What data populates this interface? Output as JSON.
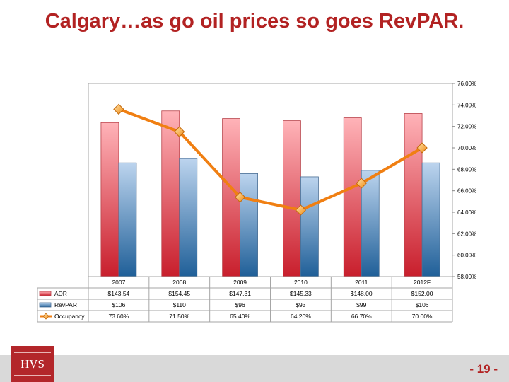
{
  "slide": {
    "title": "Calgary…as go oil prices so goes RevPAR.",
    "logo_text": "HVS",
    "page_number": "- 19 -"
  },
  "colors": {
    "title": "#b22222",
    "adr": "#d9303c",
    "revpar": "#2e6ca4",
    "occupancy": "#f07f12",
    "footer": "#d9d9d9"
  },
  "chart_data": {
    "type": "bar",
    "categories": [
      "2007",
      "2008",
      "2009",
      "2010",
      "2011",
      "2012F"
    ],
    "series": [
      {
        "name": "ADR",
        "type": "bar",
        "values": [
          143.54,
          154.45,
          147.31,
          145.33,
          148.0,
          152.0
        ],
        "labels": [
          "$143.54",
          "$154.45",
          "$147.31",
          "$145.33",
          "$148.00",
          "$152.00"
        ]
      },
      {
        "name": "RevPAR",
        "type": "bar",
        "values": [
          106,
          110,
          96,
          93,
          99,
          106
        ],
        "labels": [
          "$106",
          "$110",
          "$96",
          "$93",
          "$99",
          "$106"
        ]
      },
      {
        "name": "Occupancy",
        "type": "line",
        "axis": "right",
        "values": [
          73.6,
          71.5,
          65.4,
          64.2,
          66.7,
          70.0
        ],
        "labels": [
          "73.60%",
          "71.50%",
          "65.40%",
          "64.20%",
          "66.70%",
          "70.00%"
        ]
      }
    ],
    "y_left_range": [
      0,
      180
    ],
    "y_right_range": [
      58,
      76
    ],
    "y_right_ticks": [
      "76.00%",
      "74.00%",
      "72.00%",
      "70.00%",
      "68.00%",
      "66.00%",
      "64.00%",
      "62.00%",
      "60.00%",
      "58.00%"
    ],
    "legend": "data-table",
    "grid": false
  }
}
